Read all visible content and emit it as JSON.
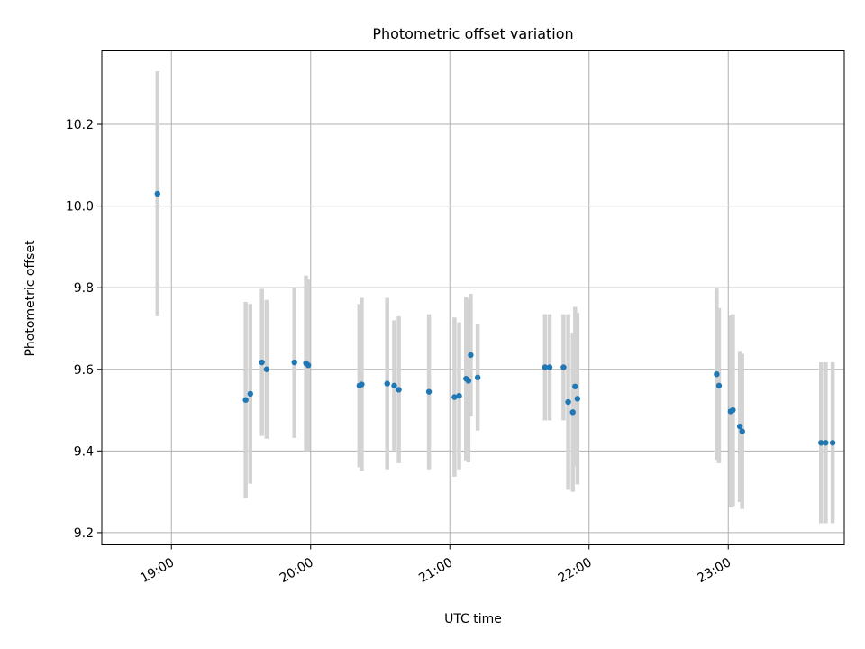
{
  "chart_data": {
    "type": "scatter",
    "title": "Photometric offset variation",
    "xlabel": "UTC time",
    "ylabel": "Photometric offset",
    "xlim": [
      "18:30",
      "23:50"
    ],
    "ylim": [
      9.17,
      10.38
    ],
    "grid": true,
    "legend": "none",
    "x_ticks": [
      "19:00",
      "20:00",
      "21:00",
      "22:00",
      "23:00"
    ],
    "y_ticks": [
      "9.2",
      "9.4",
      "9.6",
      "9.8",
      "10.0",
      "10.2"
    ],
    "colors": {
      "point": "#1f77b4",
      "errorbar": "#d3d3d3",
      "grid": "#b0b0b0"
    },
    "points": [
      {
        "x": "18:54",
        "y": 10.03,
        "err": 0.3
      },
      {
        "x": "19:32",
        "y": 9.525,
        "err": 0.24
      },
      {
        "x": "19:34",
        "y": 9.54,
        "err": 0.22
      },
      {
        "x": "19:39",
        "y": 9.617,
        "err": 0.18
      },
      {
        "x": "19:41",
        "y": 9.6,
        "err": 0.17
      },
      {
        "x": "19:53",
        "y": 9.617,
        "err": 0.185
      },
      {
        "x": "19:58",
        "y": 9.615,
        "err": 0.215
      },
      {
        "x": "19:59",
        "y": 9.61,
        "err": 0.21
      },
      {
        "x": "20:21",
        "y": 9.56,
        "err": 0.2
      },
      {
        "x": "20:22",
        "y": 9.563,
        "err": 0.212
      },
      {
        "x": "20:33",
        "y": 9.565,
        "err": 0.21
      },
      {
        "x": "20:36",
        "y": 9.56,
        "err": 0.16
      },
      {
        "x": "20:38",
        "y": 9.55,
        "err": 0.18
      },
      {
        "x": "20:51",
        "y": 9.545,
        "err": 0.19
      },
      {
        "x": "21:02",
        "y": 9.532,
        "err": 0.195
      },
      {
        "x": "21:04",
        "y": 9.535,
        "err": 0.18
      },
      {
        "x": "21:07",
        "y": 9.577,
        "err": 0.2
      },
      {
        "x": "21:08",
        "y": 9.572,
        "err": 0.2
      },
      {
        "x": "21:09",
        "y": 9.635,
        "err": 0.15
      },
      {
        "x": "21:12",
        "y": 9.58,
        "err": 0.13
      },
      {
        "x": "21:41",
        "y": 9.605,
        "err": 0.13
      },
      {
        "x": "21:43",
        "y": 9.605,
        "err": 0.13
      },
      {
        "x": "21:49",
        "y": 9.605,
        "err": 0.13
      },
      {
        "x": "21:51",
        "y": 9.52,
        "err": 0.215
      },
      {
        "x": "21:53",
        "y": 9.495,
        "err": 0.195
      },
      {
        "x": "21:54",
        "y": 9.558,
        "err": 0.195
      },
      {
        "x": "21:55",
        "y": 9.528,
        "err": 0.21
      },
      {
        "x": "22:55",
        "y": 9.588,
        "err": 0.21
      },
      {
        "x": "22:56",
        "y": 9.56,
        "err": 0.19
      },
      {
        "x": "23:01",
        "y": 9.497,
        "err": 0.235
      },
      {
        "x": "23:02",
        "y": 9.5,
        "err": 0.235
      },
      {
        "x": "23:05",
        "y": 9.46,
        "err": 0.185
      },
      {
        "x": "23:06",
        "y": 9.448,
        "err": 0.19
      },
      {
        "x": "23:40",
        "y": 9.42,
        "err": 0.197
      },
      {
        "x": "23:42",
        "y": 9.42,
        "err": 0.197
      },
      {
        "x": "23:45",
        "y": 9.42,
        "err": 0.197
      }
    ]
  }
}
